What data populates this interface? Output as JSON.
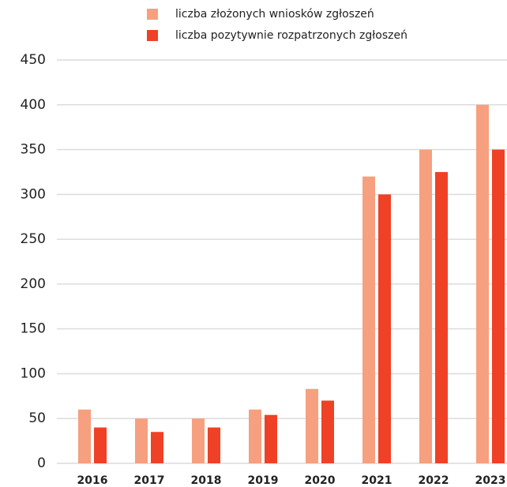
{
  "chart_data": {
    "type": "bar",
    "categories": [
      "2016",
      "2017",
      "2018",
      "2019",
      "2020",
      "2021",
      "2022",
      "2023"
    ],
    "series": [
      {
        "name": "liczba złożonych wniosków zgłoszeń",
        "color": "#f6a07f",
        "values": [
          60,
          50,
          50,
          60,
          83,
          320,
          350,
          400
        ]
      },
      {
        "name": "liczba pozytywnie rozpatrzonych zgłoszeń",
        "color": "#ef4126",
        "values": [
          40,
          35,
          40,
          54,
          70,
          300,
          325,
          350
        ]
      }
    ],
    "ylim": [
      0,
      450
    ],
    "yticks": [
      0,
      50,
      100,
      150,
      200,
      250,
      300,
      350,
      400,
      450
    ],
    "grid": true
  }
}
